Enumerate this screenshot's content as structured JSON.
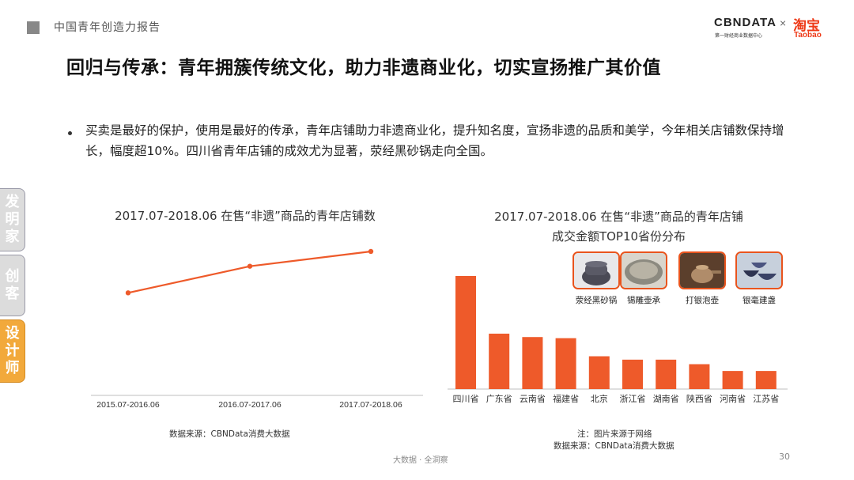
{
  "header": {
    "title": "中国青年创造力报告"
  },
  "brand": {
    "cbn": "CBNDATA",
    "cbn_sub": "第一财经商业数据中心",
    "separator": "×",
    "taobao_cn": "淘宝",
    "taobao_en": "Taobao"
  },
  "main_title": "回归与传承：青年拥簇传统文化，助力非遗商业化，切实宣扬推广其价值",
  "bullet": "买卖是最好的保护，使用是最好的传承，青年店铺助力非遗商业化，提升知名度，宣扬非遗的品质和美学，今年相关店铺数保持增长，幅度超10%。四川省青年店铺的成效尤为显著，荥经黑砂锅走向全国。",
  "side_tabs": [
    "发明家",
    "创客",
    "设计师"
  ],
  "colors": {
    "accent": "#ee5a2a",
    "tab_active": "#f2a93b",
    "tab_inactive": "#dcdcdc"
  },
  "chart_data": [
    {
      "type": "line",
      "title": "2017.07-2018.06 在售“非遗”商品的青年店铺数",
      "categories": [
        "2015.07-2016.06",
        "2016.07-2017.06",
        "2017.07-2018.06"
      ],
      "values": [
        100,
        127,
        142
      ],
      "ylim": [
        0,
        150
      ],
      "grid": false,
      "source": "数据来源：CBNData消费大数据"
    },
    {
      "type": "bar",
      "title_line1": "2017.07-2018.06 在售“非遗”商品的青年店铺",
      "title_line2": "成交金额TOP10省份分布",
      "categories": [
        "四川省",
        "广东省",
        "云南省",
        "福建省",
        "北京",
        "浙江省",
        "湖南省",
        "陕西省",
        "河南省",
        "江苏省"
      ],
      "values": [
        100,
        49,
        46,
        45,
        29,
        26,
        26,
        22,
        16,
        16
      ],
      "ylim": [
        0,
        100
      ],
      "grid": false,
      "note": "注：图片来源于网络",
      "source": "数据来源：CBNData消费大数据"
    }
  ],
  "products": [
    {
      "label": "荥经黑砂锅",
      "icon": "black-clay-pot-photo"
    },
    {
      "label": "锡雕壶承",
      "icon": "tin-tray-photo"
    },
    {
      "label": "打银泡壶",
      "icon": "silver-teapot-photo"
    },
    {
      "label": "银毫建盏",
      "icon": "tea-bowl-photo"
    }
  ],
  "footer": {
    "text": "大数据 · 全洞察",
    "page": "30"
  }
}
